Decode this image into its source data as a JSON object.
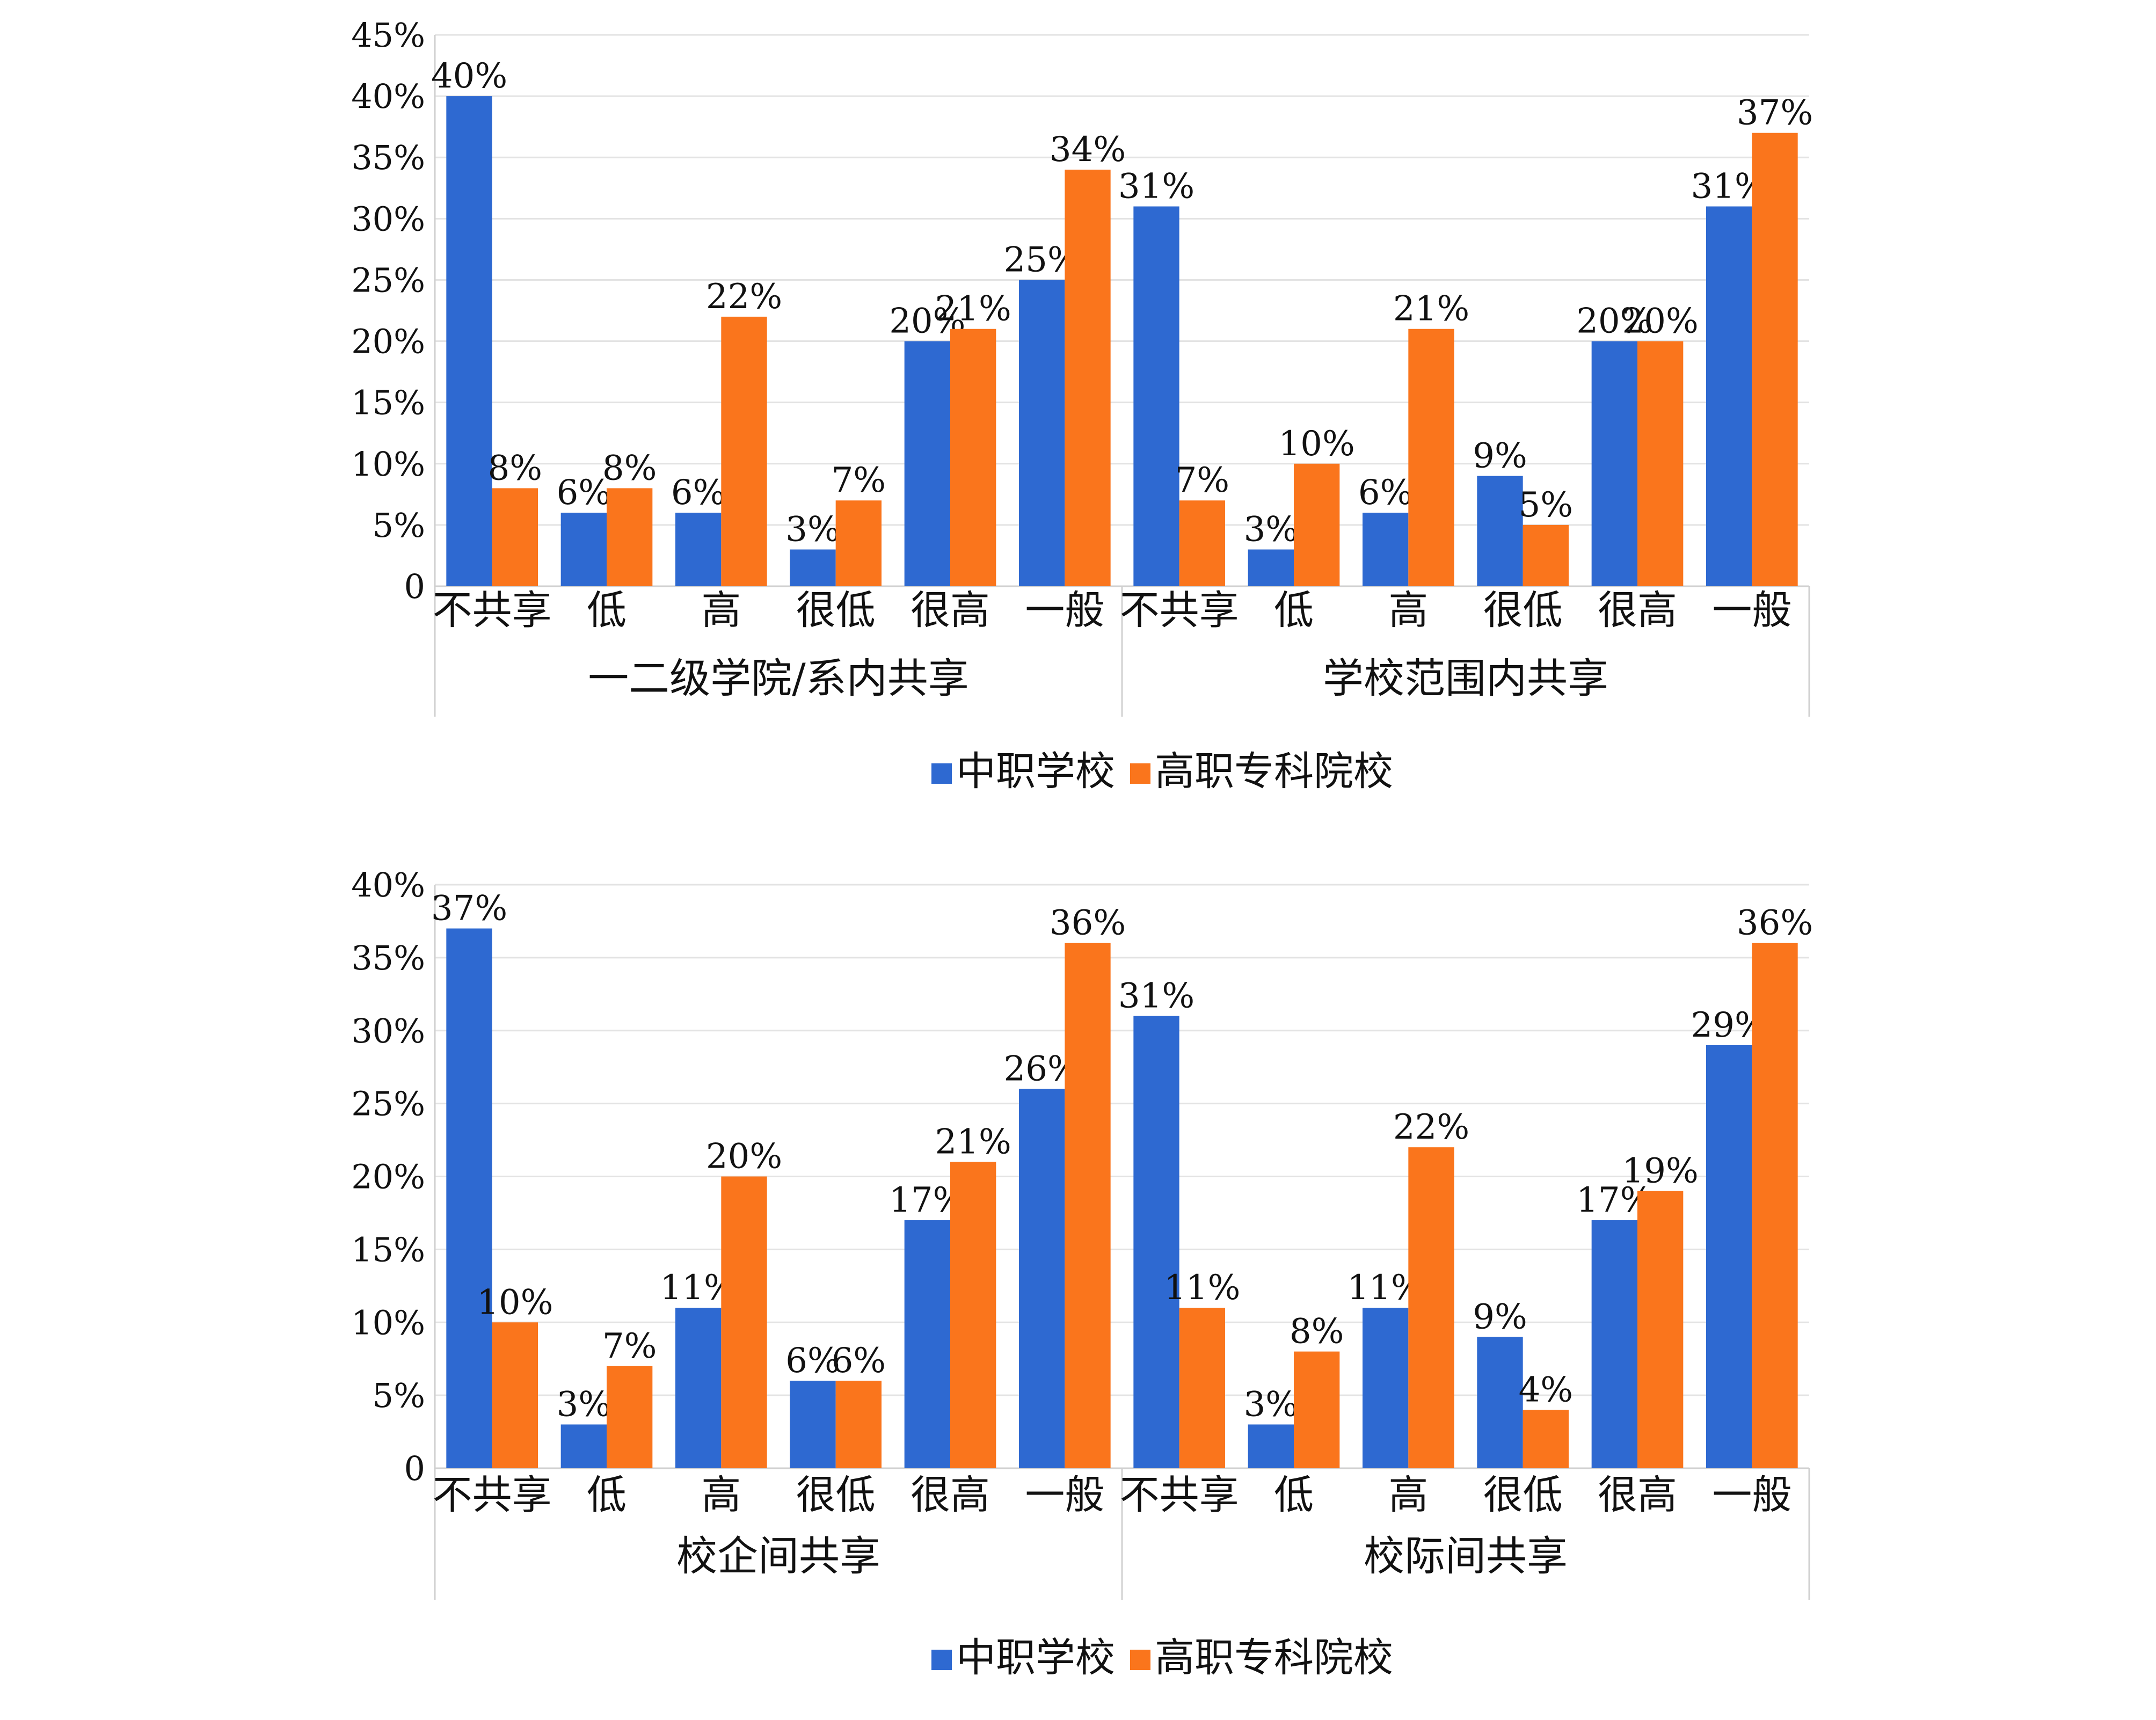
{
  "colors": {
    "middle": "#2E69D1",
    "higher": "#FA751C",
    "grid": "#E3E3E3",
    "axis": "#D0D0D0"
  },
  "legend": {
    "middle_label": "中职学校",
    "higher_label": "高职专科院校"
  },
  "chart_data": [
    {
      "type": "bar",
      "ylim": [
        0,
        45
      ],
      "yticks": [
        "0",
        "5%",
        "10%",
        "15%",
        "20%",
        "25%",
        "30%",
        "35%",
        "40%",
        "45%"
      ],
      "categories": [
        "不共享",
        "低",
        "高",
        "很低",
        "很高",
        "一般"
      ],
      "groups": [
        {
          "label": "一二级学院/系内共享",
          "series": [
            {
              "name": "中职学校",
              "values": [
                40,
                6,
                6,
                3,
                20,
                25
              ]
            },
            {
              "name": "高职专科院校",
              "values": [
                8,
                8,
                22,
                7,
                21,
                34
              ]
            }
          ]
        },
        {
          "label": "学校范围内共享",
          "series": [
            {
              "name": "中职学校",
              "values": [
                31,
                3,
                6,
                9,
                20,
                31
              ]
            },
            {
              "name": "高职专科院校",
              "values": [
                7,
                10,
                21,
                5,
                20,
                37
              ]
            }
          ]
        }
      ],
      "legend_position": "bottom-center",
      "grid": true
    },
    {
      "type": "bar",
      "ylim": [
        0,
        40
      ],
      "yticks": [
        "0",
        "5%",
        "10%",
        "15%",
        "20%",
        "25%",
        "30%",
        "35%",
        "40%"
      ],
      "categories": [
        "不共享",
        "低",
        "高",
        "很低",
        "很高",
        "一般"
      ],
      "groups": [
        {
          "label": "校企间共享",
          "series": [
            {
              "name": "中职学校",
              "values": [
                37,
                3,
                11,
                6,
                17,
                26
              ]
            },
            {
              "name": "高职专科院校",
              "values": [
                10,
                7,
                20,
                6,
                21,
                36
              ]
            }
          ]
        },
        {
          "label": "校际间共享",
          "series": [
            {
              "name": "中职学校",
              "values": [
                31,
                3,
                11,
                9,
                17,
                29
              ]
            },
            {
              "name": "高职专科院校",
              "values": [
                11,
                8,
                22,
                4,
                19,
                36
              ]
            }
          ]
        }
      ],
      "legend_position": "bottom-center",
      "grid": true
    }
  ]
}
